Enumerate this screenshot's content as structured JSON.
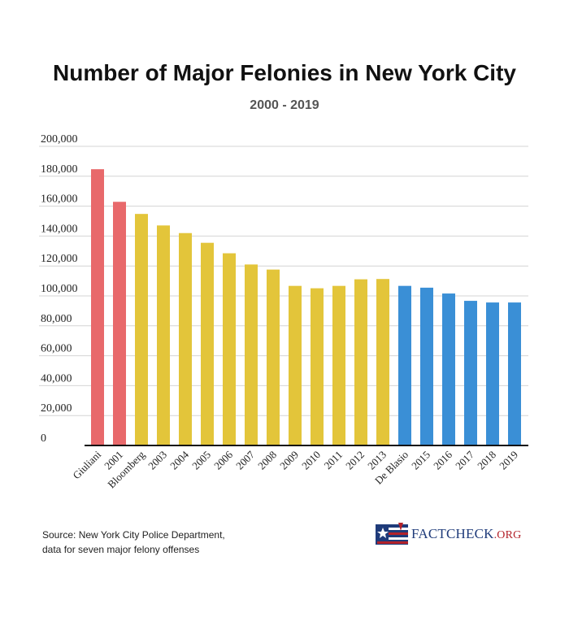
{
  "chart_data": {
    "type": "bar",
    "title": "Number of Major Felonies in New York City",
    "subtitle": "2000 - 2019",
    "xlabel": "",
    "ylabel": "",
    "ylim": [
      0,
      200000
    ],
    "yticks": [
      "0",
      "20,000",
      "40,000",
      "60,000",
      "80,000",
      "100,000",
      "120,000",
      "140,000",
      "160,000",
      "180,000",
      "200,000"
    ],
    "grid": true,
    "categories": [
      "Giuliani",
      "2001",
      "Bloomberg",
      "2003",
      "2004",
      "2005",
      "2006",
      "2007",
      "2008",
      "2009",
      "2010",
      "2011",
      "2012",
      "2013",
      "De Blasio",
      "2015",
      "2016",
      "2017",
      "2018",
      "2019"
    ],
    "values": [
      184700,
      162900,
      154800,
      147100,
      142000,
      135500,
      128500,
      121000,
      117600,
      106700,
      105100,
      106700,
      111100,
      111300,
      106700,
      105500,
      101600,
      96700,
      95600,
      95600
    ],
    "bar_colors": [
      "#e8696b",
      "#e8696b",
      "#e3c53a",
      "#e3c53a",
      "#e3c53a",
      "#e3c53a",
      "#e3c53a",
      "#e3c53a",
      "#e3c53a",
      "#e3c53a",
      "#e3c53a",
      "#e3c53a",
      "#e3c53a",
      "#e3c53a",
      "#3a8fd6",
      "#3a8fd6",
      "#3a8fd6",
      "#3a8fd6",
      "#3a8fd6",
      "#3a8fd6"
    ],
    "colors": {
      "giuliani": "#e8696b",
      "bloomberg": "#e3c53a",
      "de_blasio": "#3a8fd6"
    }
  },
  "footer": {
    "source_line1": "Source: New York City Police Department,",
    "source_line2": "data for seven major felony offenses"
  },
  "logo": {
    "text_main": "FACTCHECK",
    "text_org": ".ORG",
    "icon": "flag-logo-icon"
  }
}
